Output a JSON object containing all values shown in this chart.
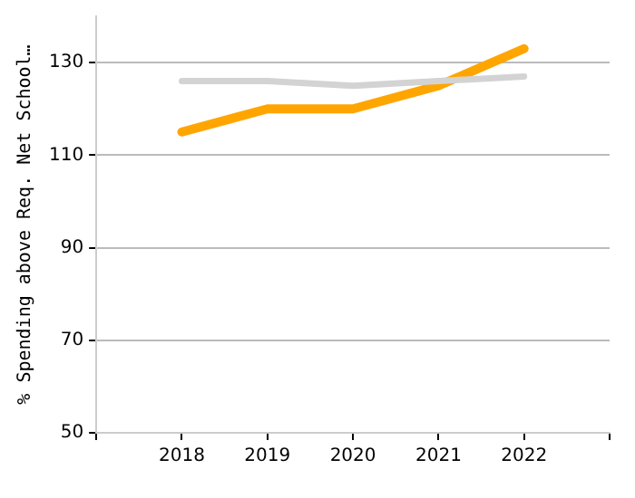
{
  "chart_data": {
    "type": "line",
    "ylabel": "% Spending above Req. Net School…",
    "x": [
      2018,
      2019,
      2020,
      2021,
      2022
    ],
    "series": [
      {
        "color": "#d3d3d3",
        "values": [
          126,
          126,
          125,
          126,
          127
        ]
      },
      {
        "color": "#ffa500",
        "values": [
          115,
          120,
          120,
          125,
          133
        ]
      }
    ],
    "xlim": [
      2017,
      2023
    ],
    "xticks": [
      {
        "value": 2017,
        "label": null
      },
      2018,
      2019,
      2020,
      2021,
      2022,
      {
        "value": 2023,
        "label": null
      }
    ],
    "ylim": [
      50,
      140
    ],
    "yticks": [
      50,
      70,
      90,
      110,
      130
    ],
    "grid": "y",
    "legend": false,
    "marker": "none",
    "line_style": "solid"
  }
}
